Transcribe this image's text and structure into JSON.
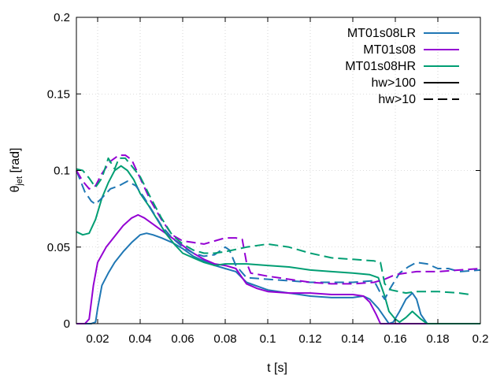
{
  "chart_data": {
    "type": "line",
    "title": "",
    "xlabel": "t [s]",
    "ylabel_main": "θ",
    "ylabel_sub": "jet",
    "ylabel_unit": " [rad]",
    "xlim": [
      0.01,
      0.2
    ],
    "ylim": [
      0,
      0.2
    ],
    "x_ticks": [
      0.02,
      0.04,
      0.06,
      0.08,
      0.1,
      0.12,
      0.14,
      0.16,
      0.18,
      0.2
    ],
    "x_tick_labels": [
      "0.02",
      "0.04",
      "0.06",
      "0.08",
      "0.1",
      "0.12",
      "0.14",
      "0.16",
      "0.18",
      "0.2"
    ],
    "y_ticks": [
      0,
      0.05,
      0.1,
      0.15,
      0.2
    ],
    "y_tick_labels": [
      "0",
      "0.05",
      "0.1",
      "0.15",
      "0.2"
    ],
    "grid": true,
    "legend_position": "top-right",
    "legend": [
      {
        "label": "MT01s08LR",
        "color": "#1f77b4",
        "dash": "solid"
      },
      {
        "label": "MT01s08",
        "color": "#9400d3",
        "dash": "solid"
      },
      {
        "label": "MT01s08HR",
        "color": "#009e73",
        "dash": "solid"
      },
      {
        "label": "hw>100",
        "color": "#000000",
        "dash": "solid"
      },
      {
        "label": "hw>10",
        "color": "#000000",
        "dash": "dashed"
      }
    ],
    "series": [
      {
        "name": "MT01s08LR hw>100",
        "color": "#1f77b4",
        "dash": "solid",
        "x": [
          0.01,
          0.017,
          0.019,
          0.02,
          0.022,
          0.025,
          0.028,
          0.032,
          0.036,
          0.04,
          0.043,
          0.046,
          0.05,
          0.055,
          0.06,
          0.065,
          0.07,
          0.075,
          0.08,
          0.085,
          0.09,
          0.1,
          0.11,
          0.12,
          0.13,
          0.14,
          0.145,
          0.148,
          0.152,
          0.155,
          0.157,
          0.159,
          0.162,
          0.165,
          0.168,
          0.17,
          0.172,
          0.175,
          0.2
        ],
        "y": [
          0,
          0,
          0.001,
          0.01,
          0.025,
          0.033,
          0.04,
          0.047,
          0.053,
          0.058,
          0.059,
          0.058,
          0.056,
          0.053,
          0.049,
          0.044,
          0.041,
          0.038,
          0.036,
          0.034,
          0.027,
          0.022,
          0.02,
          0.018,
          0.017,
          0.017,
          0.018,
          0.016,
          0.01,
          0.004,
          0,
          0.001,
          0.008,
          0.016,
          0.02,
          0.016,
          0.006,
          0,
          0
        ]
      },
      {
        "name": "MT01s08 hw>100",
        "color": "#9400d3",
        "dash": "solid",
        "x": [
          0.01,
          0.014,
          0.016,
          0.018,
          0.02,
          0.024,
          0.028,
          0.032,
          0.036,
          0.039,
          0.042,
          0.046,
          0.05,
          0.055,
          0.06,
          0.065,
          0.07,
          0.075,
          0.08,
          0.085,
          0.09,
          0.095,
          0.1,
          0.11,
          0.12,
          0.13,
          0.14,
          0.145,
          0.148,
          0.151,
          0.153,
          0.2
        ],
        "y": [
          0,
          0,
          0.003,
          0.025,
          0.04,
          0.05,
          0.057,
          0.064,
          0.069,
          0.071,
          0.069,
          0.065,
          0.061,
          0.056,
          0.051,
          0.046,
          0.042,
          0.039,
          0.038,
          0.036,
          0.026,
          0.023,
          0.021,
          0.02,
          0.02,
          0.019,
          0.019,
          0.018,
          0.014,
          0.006,
          0,
          0
        ]
      },
      {
        "name": "MT01s08HR hw>100",
        "color": "#009e73",
        "dash": "solid",
        "x": [
          0.01,
          0.013,
          0.016,
          0.019,
          0.022,
          0.025,
          0.028,
          0.031,
          0.034,
          0.037,
          0.04,
          0.044,
          0.048,
          0.052,
          0.056,
          0.06,
          0.065,
          0.07,
          0.075,
          0.08,
          0.09,
          0.1,
          0.11,
          0.12,
          0.13,
          0.14,
          0.148,
          0.152,
          0.155,
          0.157,
          0.16,
          0.162,
          0.165,
          0.168,
          0.172,
          0.175,
          0.2
        ],
        "y": [
          0.06,
          0.058,
          0.059,
          0.068,
          0.082,
          0.092,
          0.1,
          0.103,
          0.1,
          0.094,
          0.085,
          0.077,
          0.068,
          0.059,
          0.052,
          0.046,
          0.043,
          0.04,
          0.038,
          0.039,
          0.039,
          0.038,
          0.037,
          0.035,
          0.034,
          0.033,
          0.032,
          0.03,
          0.018,
          0.008,
          0.003,
          0.001,
          0.004,
          0.008,
          0.003,
          0,
          0
        ]
      },
      {
        "name": "MT01s08LR hw>10",
        "color": "#1f77b4",
        "dash": "dashed",
        "x": [
          0.01,
          0.014,
          0.017,
          0.019,
          0.022,
          0.026,
          0.03,
          0.034,
          0.038,
          0.042,
          0.046,
          0.05,
          0.055,
          0.06,
          0.065,
          0.07,
          0.075,
          0.08,
          0.082,
          0.085,
          0.09,
          0.1,
          0.11,
          0.12,
          0.13,
          0.14,
          0.15,
          0.153,
          0.155,
          0.158,
          0.162,
          0.166,
          0.17,
          0.175,
          0.18,
          0.185,
          0.19,
          0.2
        ],
        "y": [
          0.1,
          0.086,
          0.08,
          0.078,
          0.082,
          0.088,
          0.09,
          0.093,
          0.09,
          0.082,
          0.073,
          0.064,
          0.056,
          0.05,
          0.046,
          0.044,
          0.045,
          0.05,
          0.048,
          0.038,
          0.03,
          0.029,
          0.028,
          0.027,
          0.027,
          0.027,
          0.028,
          0.02,
          0.016,
          0.024,
          0.033,
          0.037,
          0.04,
          0.039,
          0.036,
          0.036,
          0.034,
          0.035
        ]
      },
      {
        "name": "MT01s08 hw>10",
        "color": "#9400d3",
        "dash": "dashed",
        "x": [
          0.01,
          0.013,
          0.016,
          0.019,
          0.022,
          0.026,
          0.03,
          0.033,
          0.036,
          0.04,
          0.045,
          0.05,
          0.055,
          0.06,
          0.065,
          0.07,
          0.075,
          0.08,
          0.085,
          0.088,
          0.09,
          0.092,
          0.1,
          0.11,
          0.12,
          0.13,
          0.14,
          0.15,
          0.155,
          0.16,
          0.165,
          0.17,
          0.18,
          0.19,
          0.2
        ],
        "y": [
          0.1,
          0.093,
          0.088,
          0.09,
          0.098,
          0.106,
          0.11,
          0.11,
          0.107,
          0.095,
          0.08,
          0.068,
          0.058,
          0.054,
          0.053,
          0.052,
          0.054,
          0.056,
          0.056,
          0.055,
          0.04,
          0.033,
          0.031,
          0.029,
          0.027,
          0.026,
          0.026,
          0.027,
          0.029,
          0.032,
          0.033,
          0.034,
          0.034,
          0.035,
          0.036
        ]
      },
      {
        "name": "MT01s08HR hw>10",
        "color": "#009e73",
        "dash": "dashed",
        "x": [
          0.01,
          0.013,
          0.016,
          0.019,
          0.022,
          0.025,
          0.028,
          0.03,
          0.033,
          0.036,
          0.04,
          0.045,
          0.05,
          0.055,
          0.06,
          0.065,
          0.07,
          0.075,
          0.08,
          0.09,
          0.1,
          0.11,
          0.12,
          0.13,
          0.14,
          0.15,
          0.153,
          0.155,
          0.158,
          0.165,
          0.17,
          0.175,
          0.18,
          0.19,
          0.195
        ],
        "y": [
          0.101,
          0.1,
          0.095,
          0.089,
          0.095,
          0.108,
          0.101,
          0.108,
          0.108,
          0.103,
          0.096,
          0.082,
          0.069,
          0.058,
          0.052,
          0.048,
          0.046,
          0.046,
          0.047,
          0.05,
          0.052,
          0.05,
          0.046,
          0.043,
          0.042,
          0.041,
          0.04,
          0.026,
          0.022,
          0.02,
          0.021,
          0.021,
          0.021,
          0.02,
          0.019
        ]
      }
    ]
  }
}
